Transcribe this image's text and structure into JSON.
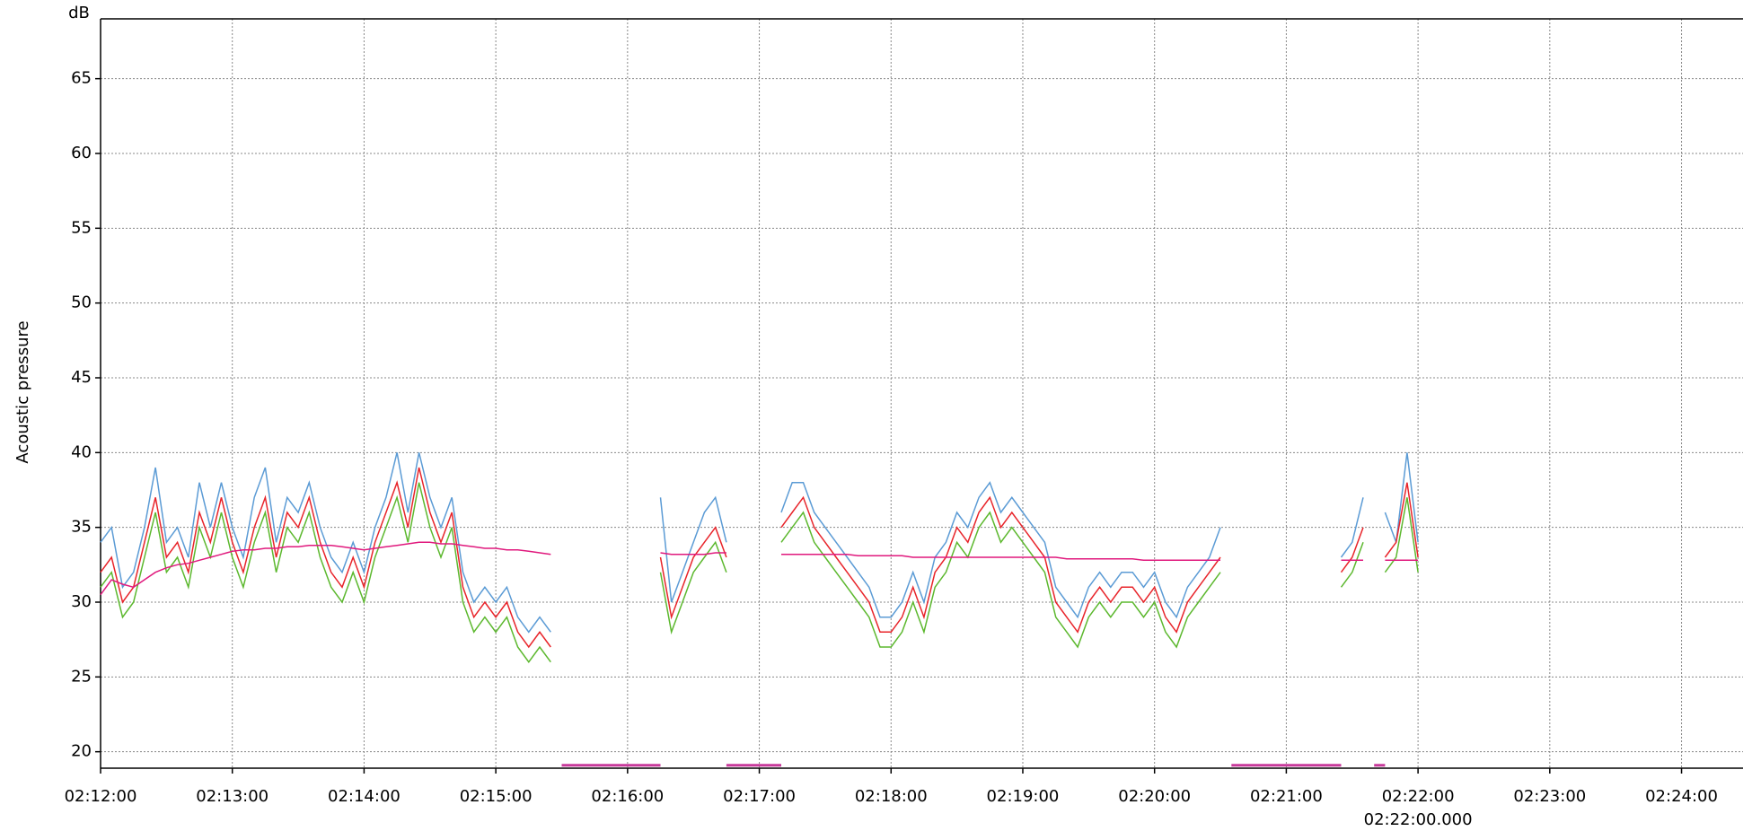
{
  "chart_data": {
    "type": "line",
    "ylabel": "Acoustic pressure",
    "yunit": "dB",
    "annotation": "02:22:00.000",
    "annotation_x": "02:22:00",
    "grid": true,
    "xlim": [
      "02:12:00",
      "02:24:28"
    ],
    "ylim": [
      18.9,
      69
    ],
    "xticks": [
      "02:12:00",
      "02:13:00",
      "02:14:00",
      "02:15:00",
      "02:16:00",
      "02:17:00",
      "02:18:00",
      "02:19:00",
      "02:20:00",
      "02:21:00",
      "02:22:00",
      "02:23:00",
      "02:24:00"
    ],
    "yticks": [
      20,
      25,
      30,
      35,
      40,
      45,
      50,
      55,
      60,
      65
    ],
    "x": [
      "02:12:00",
      "02:12:05",
      "02:12:10",
      "02:12:15",
      "02:12:20",
      "02:12:25",
      "02:12:30",
      "02:12:35",
      "02:12:40",
      "02:12:45",
      "02:12:50",
      "02:12:55",
      "02:13:00",
      "02:13:05",
      "02:13:10",
      "02:13:15",
      "02:13:20",
      "02:13:25",
      "02:13:30",
      "02:13:35",
      "02:13:40",
      "02:13:45",
      "02:13:50",
      "02:13:55",
      "02:14:00",
      "02:14:05",
      "02:14:10",
      "02:14:15",
      "02:14:20",
      "02:14:25",
      "02:14:30",
      "02:14:35",
      "02:14:40",
      "02:14:45",
      "02:14:50",
      "02:14:55",
      "02:15:00",
      "02:15:05",
      "02:15:10",
      "02:15:15",
      "02:15:20",
      "02:15:25",
      "02:15:30",
      "02:15:35",
      "02:15:40",
      "02:15:45",
      "02:15:50",
      "02:15:55",
      "02:16:00",
      "02:16:05",
      "02:16:10",
      "02:16:15",
      "02:16:20",
      "02:16:25",
      "02:16:30",
      "02:16:35",
      "02:16:40",
      "02:16:45",
      "02:16:50",
      "02:16:55",
      "02:17:00",
      "02:17:05",
      "02:17:10",
      "02:17:15",
      "02:17:20",
      "02:17:25",
      "02:17:30",
      "02:17:35",
      "02:17:40",
      "02:17:45",
      "02:17:50",
      "02:17:55",
      "02:18:00",
      "02:18:05",
      "02:18:10",
      "02:18:15",
      "02:18:20",
      "02:18:25",
      "02:18:30",
      "02:18:35",
      "02:18:40",
      "02:18:45",
      "02:18:50",
      "02:18:55",
      "02:19:00",
      "02:19:05",
      "02:19:10",
      "02:19:15",
      "02:19:20",
      "02:19:25",
      "02:19:30",
      "02:19:35",
      "02:19:40",
      "02:19:45",
      "02:19:50",
      "02:19:55",
      "02:20:00",
      "02:20:05",
      "02:20:10",
      "02:20:15",
      "02:20:20",
      "02:20:25",
      "02:20:30",
      "02:20:35",
      "02:20:40",
      "02:20:45",
      "02:20:50",
      "02:20:55",
      "02:21:00",
      "02:21:05",
      "02:21:10",
      "02:21:15",
      "02:21:20",
      "02:21:25",
      "02:21:30",
      "02:21:35",
      "02:21:40",
      "02:21:45",
      "02:21:50",
      "02:21:55",
      "02:22:00"
    ],
    "series": [
      {
        "color": "#5b9bd5",
        "values": [
          34,
          35,
          31,
          32,
          35,
          39,
          34,
          35,
          33,
          38,
          35,
          38,
          35,
          33,
          37,
          39,
          34,
          37,
          36,
          38,
          35,
          33,
          32,
          34,
          32,
          35,
          37,
          40,
          36,
          40,
          37,
          35,
          37,
          32,
          30,
          31,
          30,
          31,
          29,
          28,
          29,
          28,
          null,
          null,
          null,
          null,
          null,
          null,
          null,
          null,
          null,
          37,
          30,
          32,
          34,
          36,
          37,
          34,
          null,
          null,
          null,
          null,
          36,
          38,
          38,
          36,
          35,
          34,
          33,
          32,
          31,
          29,
          29,
          30,
          32,
          30,
          33,
          34,
          36,
          35,
          37,
          38,
          36,
          37,
          36,
          35,
          34,
          31,
          30,
          29,
          31,
          32,
          31,
          32,
          32,
          31,
          32,
          30,
          29,
          31,
          32,
          33,
          35,
          null,
          null,
          null,
          null,
          null,
          null,
          null,
          null,
          null,
          null,
          33,
          34,
          37,
          null,
          36,
          34,
          40,
          34
        ]
      },
      {
        "color": "#e8242a",
        "values": [
          32,
          33,
          30,
          31,
          34,
          37,
          33,
          34,
          32,
          36,
          34,
          37,
          34,
          32,
          35,
          37,
          33,
          36,
          35,
          37,
          34,
          32,
          31,
          33,
          31,
          34,
          36,
          38,
          35,
          39,
          36,
          34,
          36,
          31,
          29,
          30,
          29,
          30,
          28,
          27,
          28,
          27,
          null,
          null,
          null,
          null,
          null,
          null,
          null,
          null,
          null,
          33,
          29,
          31,
          33,
          34,
          35,
          33,
          null,
          null,
          null,
          null,
          35,
          36,
          37,
          35,
          34,
          33,
          32,
          31,
          30,
          28,
          28,
          29,
          31,
          29,
          32,
          33,
          35,
          34,
          36,
          37,
          35,
          36,
          35,
          34,
          33,
          30,
          29,
          28,
          30,
          31,
          30,
          31,
          31,
          30,
          31,
          29,
          28,
          30,
          31,
          32,
          33,
          null,
          null,
          null,
          null,
          null,
          null,
          null,
          null,
          null,
          null,
          32,
          33,
          35,
          null,
          33,
          34,
          38,
          33
        ]
      },
      {
        "color": "#5cb82e",
        "values": [
          31,
          32,
          29,
          30,
          33,
          36,
          32,
          33,
          31,
          35,
          33,
          36,
          33,
          31,
          34,
          36,
          32,
          35,
          34,
          36,
          33,
          31,
          30,
          32,
          30,
          33,
          35,
          37,
          34,
          38,
          35,
          33,
          35,
          30,
          28,
          29,
          28,
          29,
          27,
          26,
          27,
          26,
          null,
          null,
          null,
          null,
          null,
          null,
          null,
          null,
          null,
          32,
          28,
          30,
          32,
          33,
          34,
          32,
          null,
          null,
          null,
          null,
          34,
          35,
          36,
          34,
          33,
          32,
          31,
          30,
          29,
          27,
          27,
          28,
          30,
          28,
          31,
          32,
          34,
          33,
          35,
          36,
          34,
          35,
          34,
          33,
          32,
          29,
          28,
          27,
          29,
          30,
          29,
          30,
          30,
          29,
          30,
          28,
          27,
          29,
          30,
          31,
          32,
          null,
          null,
          null,
          null,
          null,
          null,
          null,
          null,
          null,
          null,
          31,
          32,
          34,
          null,
          32,
          33,
          37,
          32
        ]
      },
      {
        "color": "#e0197d",
        "values": [
          30.5,
          31.5,
          31.2,
          31,
          31.5,
          32,
          32.3,
          32.5,
          32.6,
          32.8,
          33,
          33.2,
          33.4,
          33.5,
          33.5,
          33.6,
          33.6,
          33.7,
          33.7,
          33.8,
          33.8,
          33.8,
          33.7,
          33.6,
          33.5,
          33.6,
          33.7,
          33.8,
          33.9,
          34,
          34,
          33.9,
          33.9,
          33.8,
          33.7,
          33.6,
          33.6,
          33.5,
          33.5,
          33.4,
          33.3,
          33.2,
          null,
          null,
          null,
          null,
          null,
          null,
          null,
          null,
          null,
          33.3,
          33.2,
          33.2,
          33.2,
          33.2,
          33.3,
          33.3,
          null,
          null,
          null,
          null,
          33.2,
          33.2,
          33.2,
          33.2,
          33.2,
          33.2,
          33.2,
          33.1,
          33.1,
          33.1,
          33.1,
          33.1,
          33,
          33,
          33,
          33,
          33,
          33,
          33,
          33,
          33,
          33,
          33,
          33,
          33,
          33,
          32.9,
          32.9,
          32.9,
          32.9,
          32.9,
          32.9,
          32.9,
          32.8,
          32.8,
          32.8,
          32.8,
          32.8,
          32.8,
          32.8,
          32.8,
          null,
          null,
          null,
          null,
          null,
          null,
          null,
          null,
          null,
          null,
          32.8,
          32.8,
          32.8,
          null,
          32.8,
          32.8,
          32.8,
          32.8
        ]
      },
      {
        "color": "#c8399b",
        "values": [
          null,
          null,
          null,
          null,
          null,
          null,
          null,
          null,
          null,
          null,
          null,
          null,
          null,
          null,
          null,
          null,
          null,
          null,
          null,
          null,
          null,
          null,
          null,
          null,
          null,
          null,
          null,
          null,
          null,
          null,
          null,
          null,
          null,
          null,
          null,
          null,
          null,
          null,
          null,
          null,
          null,
          null,
          19.1,
          19.1,
          19.1,
          19.1,
          19.1,
          19.1,
          19.1,
          19.1,
          19.1,
          19.1,
          null,
          null,
          null,
          null,
          null,
          19.1,
          19.1,
          19.1,
          19.1,
          19.1,
          19.1,
          null,
          null,
          null,
          null,
          null,
          null,
          null,
          null,
          null,
          null,
          null,
          null,
          null,
          null,
          null,
          null,
          null,
          null,
          null,
          null,
          null,
          null,
          null,
          null,
          null,
          null,
          null,
          null,
          null,
          null,
          null,
          null,
          null,
          null,
          null,
          null,
          null,
          null,
          null,
          null,
          19.1,
          19.1,
          19.1,
          19.1,
          19.1,
          19.1,
          19.1,
          19.1,
          19.1,
          19.1,
          19.1,
          null,
          null,
          19.1,
          19.1,
          null,
          null,
          null
        ]
      }
    ]
  }
}
